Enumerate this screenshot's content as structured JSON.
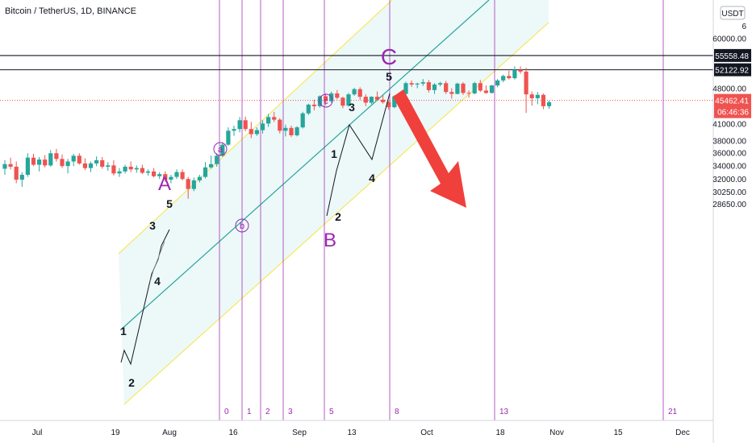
{
  "header": {
    "title": "Bitcoin / TetherUS, 1D, BINANCE"
  },
  "currency_badge": "USDT",
  "colors": {
    "up": "#26a69a",
    "down": "#ef5350",
    "channel": "#26a69a",
    "channel_edge": "#f5e642",
    "cycle": "#9c27b0",
    "arrow": "#f0403c",
    "price_tag": "#ef5350"
  },
  "chart_data": {
    "type": "candlestick",
    "x_axis_ticks": [
      "Jul",
      "19",
      "Aug",
      "16",
      "Sep",
      "13",
      "Oct",
      "18",
      "Nov",
      "15",
      "Dec"
    ],
    "y_axis_ticks": [
      28650,
      30250,
      32000,
      34000,
      36000,
      38000,
      41000,
      44000,
      48000,
      52000,
      56000,
      60000
    ],
    "y_axis_tick_labels": [
      "28650.00",
      "30250.00",
      "32000.00",
      "34000.00",
      "36000.00",
      "38000.00",
      "41000.00",
      "",
      "48000.00",
      "",
      "",
      "60000.00"
    ],
    "y_axis_top_partial": "6",
    "ylim": [
      28000,
      66000
    ],
    "horizontal_levels": [
      {
        "price": 55558.48,
        "label": "55558.48"
      },
      {
        "price": 52122.92,
        "label": "52122.92"
      }
    ],
    "current_price": {
      "price": 45462.41,
      "label": "45462.41",
      "countdown": "06:46:36"
    },
    "fib_time_labels": [
      "0",
      "1",
      "2",
      "3",
      "5",
      "8",
      "13",
      "21"
    ],
    "wave_labels": [
      "1",
      "2",
      "3",
      "4",
      "5",
      "1",
      "2",
      "3",
      "4",
      "5"
    ],
    "abc_labels": [
      "A",
      "B",
      "C"
    ],
    "circled_labels": [
      "a",
      "b",
      "c"
    ],
    "candles": [
      [
        33500,
        34800,
        32600,
        34200
      ],
      [
        34200,
        35200,
        33400,
        33800
      ],
      [
        33800,
        34600,
        31400,
        31900
      ],
      [
        31900,
        33000,
        30900,
        32600
      ],
      [
        32600,
        35900,
        32300,
        35200
      ],
      [
        35200,
        35800,
        33900,
        34100
      ],
      [
        34100,
        35300,
        33100,
        34900
      ],
      [
        34900,
        35600,
        33700,
        34000
      ],
      [
        34000,
        36400,
        33800,
        35900
      ],
      [
        35900,
        36600,
        34600,
        35000
      ],
      [
        35000,
        35700,
        33600,
        33900
      ],
      [
        33900,
        35000,
        32800,
        34600
      ],
      [
        34600,
        35800,
        33900,
        35500
      ],
      [
        35500,
        35900,
        34100,
        34300
      ],
      [
        34300,
        35100,
        33300,
        33600
      ],
      [
        33600,
        34600,
        33000,
        34300
      ],
      [
        34300,
        35400,
        33900,
        34800
      ],
      [
        34800,
        35300,
        33500,
        33800
      ],
      [
        33800,
        34500,
        33200,
        34000
      ],
      [
        34000,
        34800,
        32500,
        32800
      ],
      [
        32800,
        33600,
        32300,
        33100
      ],
      [
        33100,
        34100,
        32800,
        33800
      ],
      [
        33800,
        34600,
        33000,
        33400
      ],
      [
        33400,
        34000,
        32900,
        33600
      ],
      [
        33600,
        34100,
        32700,
        32900
      ],
      [
        32900,
        33400,
        32500,
        33100
      ],
      [
        33100,
        33600,
        32200,
        32400
      ],
      [
        32400,
        33000,
        32000,
        32700
      ],
      [
        32700,
        33100,
        31600,
        31900
      ],
      [
        31900,
        32600,
        31400,
        32300
      ],
      [
        32300,
        33400,
        32000,
        33000
      ],
      [
        33000,
        33400,
        31800,
        32000
      ],
      [
        32000,
        32300,
        29300,
        30600
      ],
      [
        30600,
        32200,
        30300,
        31800
      ],
      [
        31800,
        32600,
        31500,
        32300
      ],
      [
        32300,
        34500,
        32100,
        33700
      ],
      [
        33700,
        35500,
        33500,
        34200
      ],
      [
        34200,
        35900,
        33800,
        35500
      ],
      [
        35500,
        37700,
        35300,
        37300
      ],
      [
        37300,
        40300,
        37100,
        39700
      ],
      [
        39700,
        40600,
        38800,
        40000
      ],
      [
        40000,
        42200,
        39400,
        41600
      ],
      [
        41600,
        42300,
        39600,
        40000
      ],
      [
        40000,
        41300,
        38400,
        39100
      ],
      [
        39100,
        40300,
        38800,
        39800
      ],
      [
        39800,
        41600,
        39200,
        41000
      ],
      [
        41000,
        42800,
        40400,
        42200
      ],
      [
        42200,
        43200,
        41300,
        41700
      ],
      [
        41700,
        42000,
        39200,
        39700
      ],
      [
        39700,
        40800,
        38700,
        40200
      ],
      [
        40200,
        40600,
        38600,
        38900
      ],
      [
        38900,
        40500,
        38700,
        40300
      ],
      [
        40300,
        43200,
        40100,
        42900
      ],
      [
        42900,
        44800,
        42600,
        44600
      ],
      [
        44600,
        45600,
        43500,
        44300
      ],
      [
        44300,
        46500,
        44000,
        46300
      ],
      [
        46300,
        46900,
        44500,
        45300
      ],
      [
        45300,
        47300,
        45000,
        46900
      ],
      [
        46900,
        47600,
        45700,
        46000
      ],
      [
        46000,
        46200,
        43900,
        44400
      ],
      [
        44400,
        47000,
        44200,
        46700
      ],
      [
        46700,
        48100,
        46400,
        47800
      ],
      [
        47800,
        48200,
        45600,
        46200
      ],
      [
        46200,
        46700,
        44300,
        45000
      ],
      [
        45000,
        46300,
        44700,
        46200
      ],
      [
        46200,
        47300,
        45400,
        45600
      ],
      [
        45600,
        46500,
        44800,
        45100
      ],
      [
        45100,
        45400,
        43600,
        44100
      ],
      [
        44100,
        46500,
        43900,
        46300
      ],
      [
        46300,
        47200,
        46000,
        46800
      ],
      [
        46800,
        49400,
        46600,
        49100
      ],
      [
        49100,
        49700,
        48300,
        48800
      ],
      [
        48800,
        49200,
        48000,
        49000
      ],
      [
        49000,
        50000,
        48500,
        49300
      ],
      [
        49300,
        49800,
        47100,
        47600
      ],
      [
        47600,
        49100,
        46800,
        48800
      ],
      [
        48800,
        49400,
        48400,
        49100
      ],
      [
        49100,
        49600,
        46800,
        47200
      ],
      [
        47200,
        48000,
        45800,
        46800
      ],
      [
        46800,
        49200,
        46700,
        49000
      ],
      [
        49000,
        49300,
        46600,
        47000
      ],
      [
        47000,
        47500,
        46000,
        46900
      ],
      [
        46900,
        49400,
        46700,
        49100
      ],
      [
        49100,
        49800,
        47200,
        47500
      ],
      [
        47500,
        48600,
        46800,
        47000
      ],
      [
        47000,
        48700,
        46900,
        48600
      ],
      [
        48600,
        50000,
        48200,
        49700
      ],
      [
        49700,
        51000,
        49300,
        50700
      ],
      [
        50700,
        51900,
        49900,
        50200
      ],
      [
        50200,
        52900,
        49900,
        52100
      ],
      [
        52100,
        52900,
        51200,
        51700
      ],
      [
        51700,
        52600,
        43000,
        46700
      ],
      [
        46700,
        47300,
        44400,
        45900
      ],
      [
        45900,
        47200,
        44700,
        46600
      ],
      [
        46600,
        46900,
        43700,
        44300
      ],
      [
        44300,
        45400,
        43800,
        45100
      ]
    ]
  }
}
